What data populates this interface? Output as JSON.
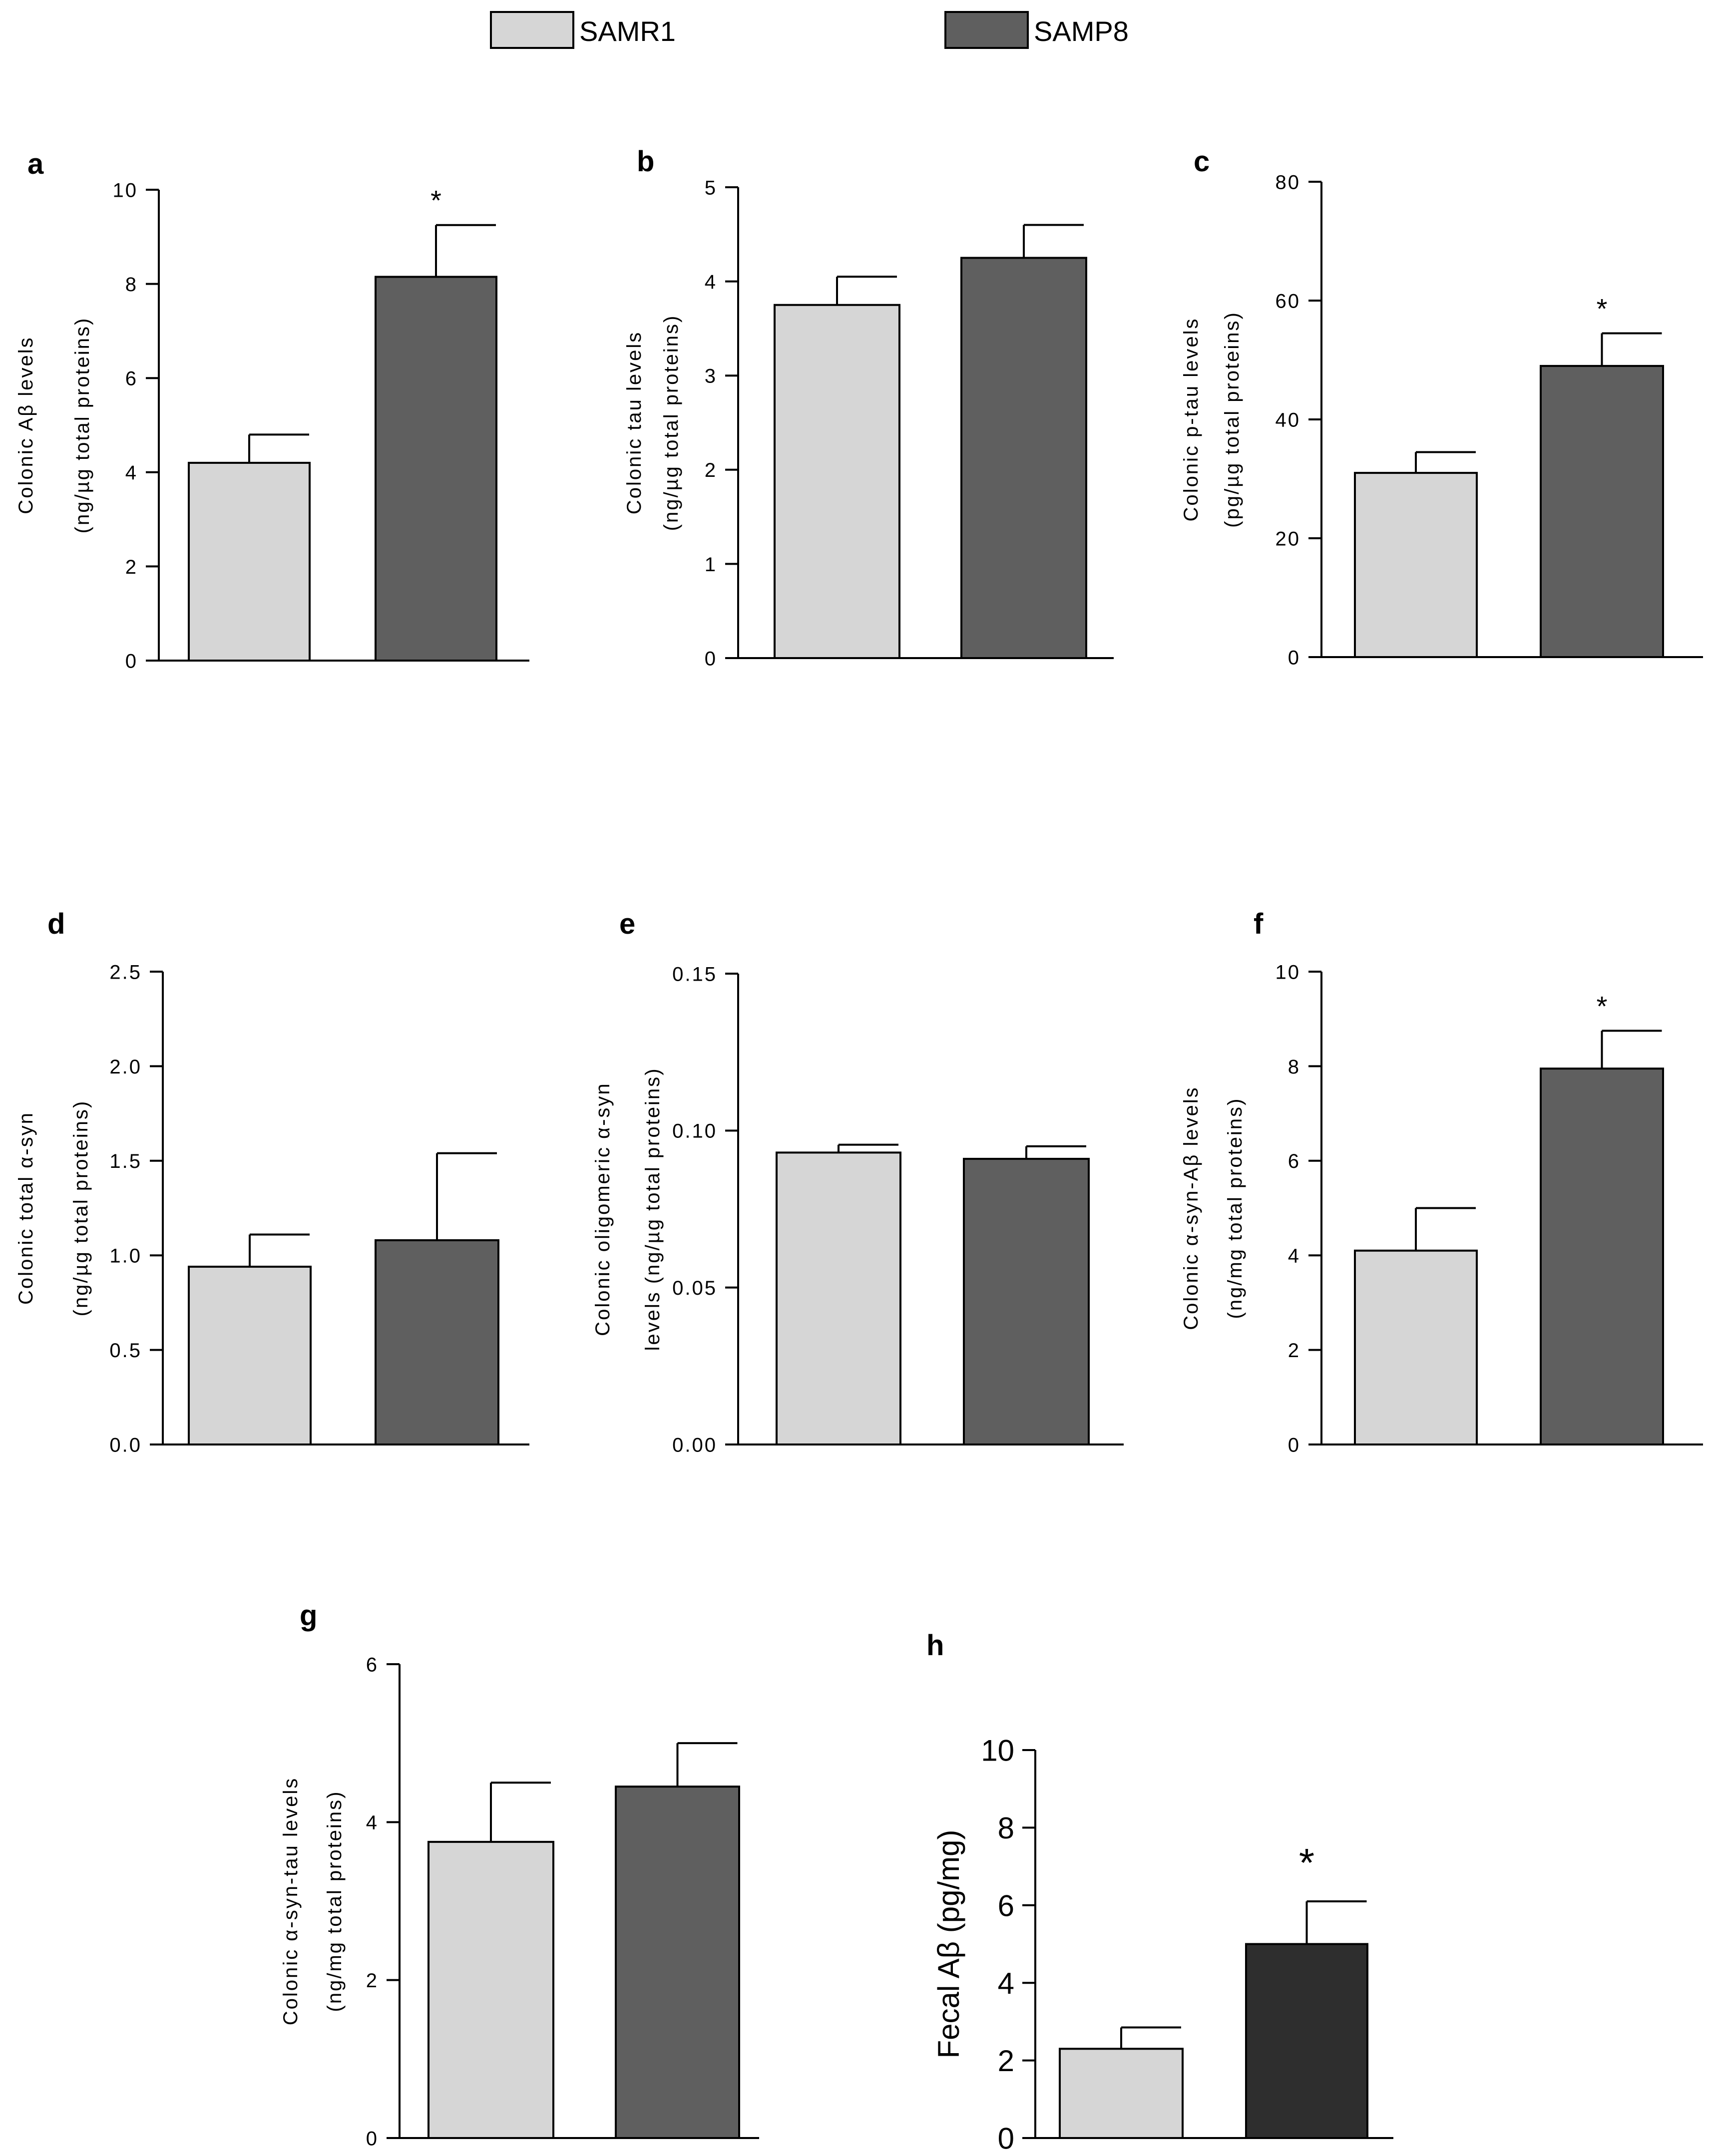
{
  "legend": {
    "entries": [
      {
        "name": "SAMR1",
        "color": "#d6d6d6"
      },
      {
        "name": "SAMP8",
        "color": "#5f5f5f"
      }
    ]
  },
  "colors": {
    "samr1": "#d6d6d6",
    "samp8": "#5f5f5f",
    "samp8_fecal": "#2e2e2e",
    "axis": "#000000"
  },
  "chart_data": [
    {
      "panel": "a",
      "type": "bar",
      "categories": [
        "SAMR1",
        "SAMP8"
      ],
      "values": [
        4.2,
        8.15
      ],
      "errors": [
        0.6,
        1.1
      ],
      "significant": [
        false,
        true
      ],
      "ylabel": [
        "Colonic Aβ levels",
        "(ng/µg total proteins)"
      ],
      "ylim": [
        0,
        10
      ],
      "yticks": [
        "0",
        "2",
        "4",
        "6",
        "8",
        "10"
      ],
      "star": "*"
    },
    {
      "panel": "b",
      "type": "bar",
      "categories": [
        "SAMR1",
        "SAMP8"
      ],
      "values": [
        3.75,
        4.25
      ],
      "errors": [
        0.3,
        0.35
      ],
      "significant": [
        false,
        false
      ],
      "ylabel": [
        "Colonic tau levels",
        "(ng/µg total proteins)"
      ],
      "ylim": [
        0,
        5
      ],
      "yticks": [
        "0",
        "1",
        "2",
        "3",
        "4",
        "5"
      ],
      "star": ""
    },
    {
      "panel": "c",
      "type": "bar",
      "categories": [
        "SAMR1",
        "SAMP8"
      ],
      "values": [
        31,
        49
      ],
      "errors": [
        3.5,
        5.5
      ],
      "significant": [
        false,
        true
      ],
      "ylabel": [
        "Colonic p-tau levels",
        "(pg/µg total proteins)"
      ],
      "ylim": [
        0,
        80
      ],
      "yticks": [
        "0",
        "20",
        "40",
        "60",
        "80"
      ],
      "star": "*"
    },
    {
      "panel": "d",
      "type": "bar",
      "categories": [
        "SAMR1",
        "SAMP8"
      ],
      "values": [
        0.94,
        1.08
      ],
      "errors": [
        0.17,
        0.46
      ],
      "significant": [
        false,
        false
      ],
      "ylabel": [
        "Colonic total α-syn",
        "(ng/µg total proteins)"
      ],
      "ylim": [
        0,
        2.5
      ],
      "yticks": [
        "0.0",
        "0.5",
        "1.0",
        "1.5",
        "2.0",
        "2.5"
      ],
      "star": ""
    },
    {
      "panel": "e",
      "type": "bar",
      "categories": [
        "SAMR1",
        "SAMP8"
      ],
      "values": [
        0.093,
        0.091
      ],
      "errors": [
        0.0025,
        0.004
      ],
      "significant": [
        false,
        false
      ],
      "ylabel": [
        "Colonic oligomeric α-syn",
        "levels (ng/µg total proteins)"
      ],
      "ylim": [
        0,
        0.15
      ],
      "yticks": [
        "0.00",
        "0.05",
        "0.10",
        "0.15"
      ],
      "star": ""
    },
    {
      "panel": "f",
      "type": "bar",
      "categories": [
        "SAMR1",
        "SAMP8"
      ],
      "values": [
        4.1,
        7.95
      ],
      "errors": [
        0.9,
        0.8
      ],
      "significant": [
        false,
        true
      ],
      "ylabel": [
        "Colonic α-syn-Aβ levels",
        "(ng/mg total proteins)"
      ],
      "ylim": [
        0,
        10
      ],
      "yticks": [
        "0",
        "2",
        "4",
        "6",
        "8",
        "10"
      ],
      "star": "*"
    },
    {
      "panel": "g",
      "type": "bar",
      "categories": [
        "SAMR1",
        "SAMP8"
      ],
      "values": [
        3.75,
        4.45
      ],
      "errors": [
        0.75,
        0.55
      ],
      "significant": [
        false,
        false
      ],
      "ylabel": [
        "Colonic α-syn-tau levels",
        "(ng/mg total proteins)"
      ],
      "ylim": [
        0,
        6
      ],
      "yticks": [
        "0",
        "2",
        "4",
        "6"
      ],
      "star": ""
    },
    {
      "panel": "h",
      "type": "bar",
      "categories": [
        "SAMR1",
        "SAMP8"
      ],
      "values": [
        2.3,
        5.0
      ],
      "errors": [
        0.55,
        1.1
      ],
      "significant": [
        false,
        true
      ],
      "ylabel": [
        "Fecal Aβ  (pg/mg)"
      ],
      "ylim": [
        0,
        10
      ],
      "yticks": [
        "0",
        "2",
        "4",
        "6",
        "8",
        "10"
      ],
      "star": "*"
    }
  ]
}
